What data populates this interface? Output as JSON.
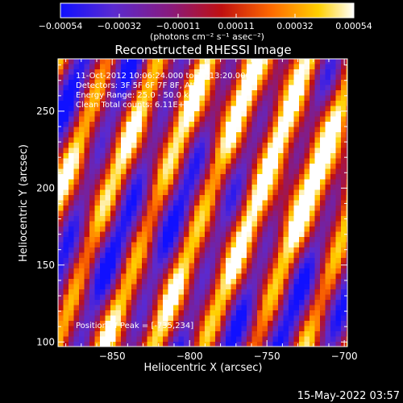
{
  "colorbar": {
    "tick_labels": [
      "−0.00054",
      "−0.00032",
      "−0.00011",
      "0.00011",
      "0.00032",
      "0.00054"
    ],
    "unit_label": "(photons cm⁻² s⁻¹ asec⁻²)",
    "colors": [
      "#1010ff",
      "#5a2ad0",
      "#8a1a7a",
      "#c01010",
      "#ff6a00",
      "#ffd000",
      "#ffffff"
    ]
  },
  "image": {
    "title": "Reconstructed RHESSI Image",
    "annotations": [
      "11-Oct-2012 10:06:24.000 to 10:13:20.000",
      "Detectors: 3F 5F 6F 7F 8F, Att 0",
      "Energy Range: 25.0 - 50.0 keV",
      "Clean      Total counts: 6.11E+03"
    ],
    "peak_label": "Position of Peak = [-735,234]",
    "peak": [
      -735,
      234
    ],
    "xlabel": "Heliocentric X (arcsec)",
    "ylabel": "Heliocentric Y (arcsec)",
    "xlim": [
      -885,
      -698
    ],
    "ylim": [
      97,
      284
    ],
    "x_ticks": [
      {
        "value": -850,
        "label": "−850"
      },
      {
        "value": -800,
        "label": "−800"
      },
      {
        "value": -750,
        "label": "−750"
      },
      {
        "value": -700,
        "label": "−700"
      }
    ],
    "y_ticks": [
      {
        "value": 100,
        "label": "100"
      },
      {
        "value": 150,
        "label": "150"
      },
      {
        "value": 200,
        "label": "200"
      },
      {
        "value": 250,
        "label": "250"
      }
    ]
  },
  "footer": {
    "timestamp": "15-May-2022 03:57"
  }
}
